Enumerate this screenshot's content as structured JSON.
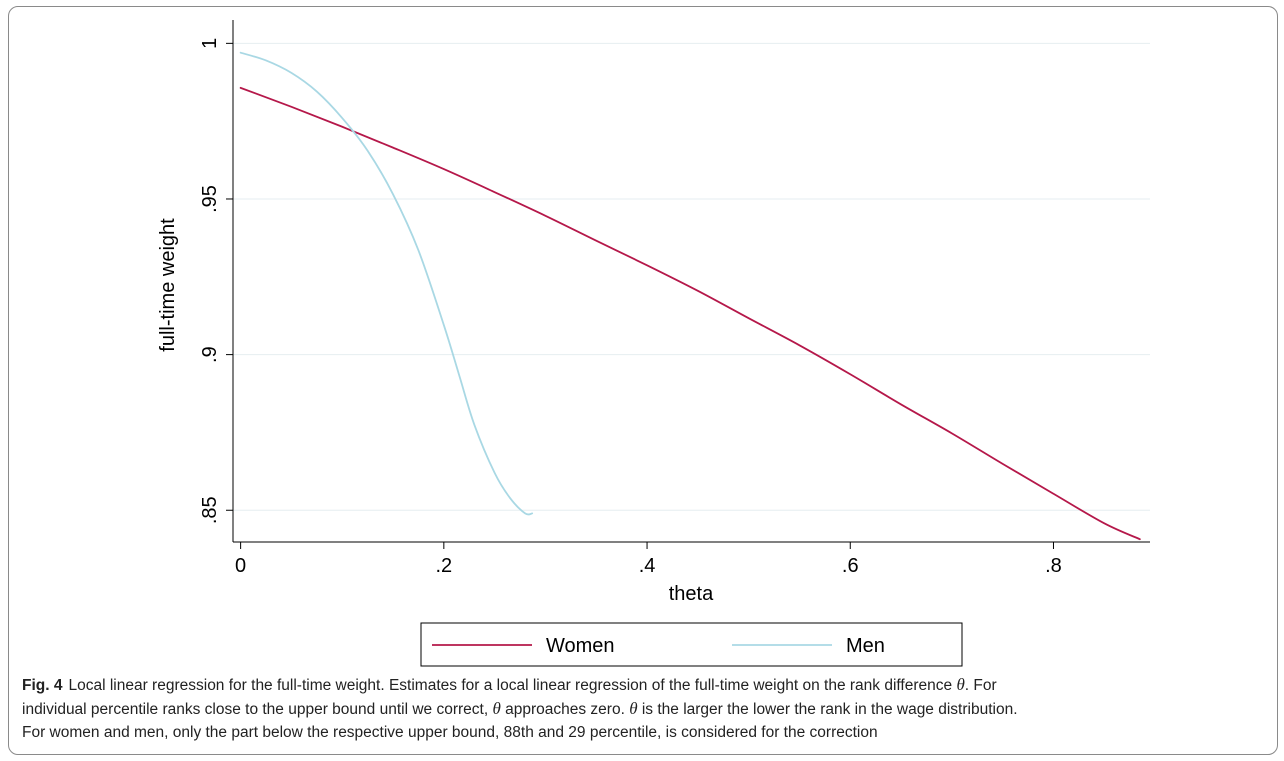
{
  "chart_data": {
    "type": "line",
    "xlabel": "theta",
    "ylabel": "full-time weight",
    "xlim": [
      -0.0075,
      0.895
    ],
    "ylim": [
      0.8398,
      1.0075
    ],
    "xticks": [
      0,
      0.2,
      0.4,
      0.6,
      0.8
    ],
    "xtick_labels": [
      "0",
      ".2",
      ".4",
      ".6",
      ".8"
    ],
    "yticks": [
      0.85,
      0.9,
      0.95,
      1
    ],
    "ytick_labels": [
      ".85",
      ".9",
      ".95",
      "1"
    ],
    "grid": true,
    "legend_position": "bottom",
    "series": [
      {
        "name": "Women",
        "color": "#b5184a",
        "x": [
          0,
          0.05,
          0.1,
          0.15,
          0.2,
          0.25,
          0.3,
          0.35,
          0.4,
          0.45,
          0.5,
          0.55,
          0.6,
          0.65,
          0.7,
          0.75,
          0.8,
          0.85,
          0.885
        ],
        "y": [
          0.9857,
          0.9796,
          0.9732,
          0.9665,
          0.9596,
          0.9522,
          0.9446,
          0.9366,
          0.9287,
          0.9205,
          0.9117,
          0.903,
          0.8937,
          0.884,
          0.8747,
          0.8649,
          0.8553,
          0.8458,
          0.8407
        ]
      },
      {
        "name": "Men",
        "color": "#a9d8e4",
        "x": [
          0,
          0.025,
          0.05,
          0.075,
          0.1,
          0.125,
          0.15,
          0.175,
          0.2,
          0.215,
          0.23,
          0.25,
          0.265,
          0.28,
          0.287
        ],
        "y": [
          0.997,
          0.9945,
          0.9905,
          0.9845,
          0.976,
          0.9655,
          0.9515,
          0.9335,
          0.9095,
          0.8935,
          0.8775,
          0.862,
          0.854,
          0.849,
          0.849
        ]
      }
    ]
  },
  "caption": {
    "label": "Fig. 4",
    "line1_before": "Local linear regression for the full-time weight. Estimates for a local linear regression of the full-time weight on the rank difference ",
    "theta_symbol": "θ",
    "line1_after": ". For",
    "line2_part1": "individual percentile ranks close to the upper bound until we correct, ",
    "line2_part2": " approaches zero. ",
    "line2_part3": " is the larger the lower the rank in the wage distribution.",
    "line3": "For women and men, only the part below the respective upper bound, 88th and 29 percentile, is considered for the correction"
  }
}
